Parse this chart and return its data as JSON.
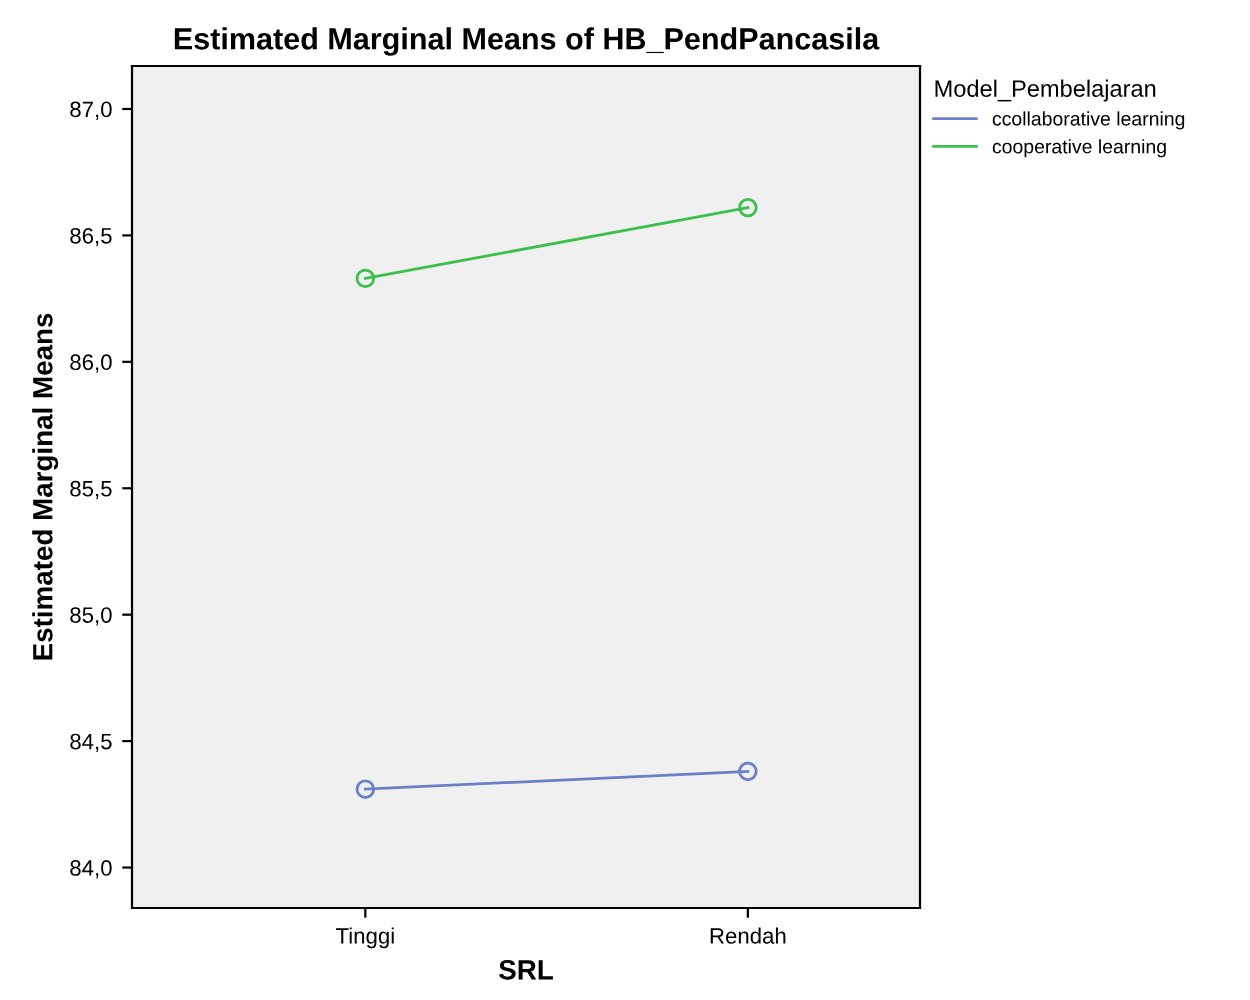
{
  "chart_data": {
    "type": "line",
    "title": "Estimated Marginal Means of HB_PendPancasila",
    "xlabel": "SRL",
    "ylabel": "Estimated Marginal Means",
    "legend_title": "Model_Pembelajaran",
    "categories": [
      "Tinggi",
      "Rendah"
    ],
    "series": [
      {
        "name": "ccollaborative learning",
        "color": "#6b7fc9",
        "values": [
          84.31,
          84.38
        ]
      },
      {
        "name": "cooperative learning",
        "color": "#3cbf4c",
        "values": [
          86.33,
          86.61
        ]
      }
    ],
    "ylim": [
      83.84,
      87.17
    ],
    "yticks": [
      {
        "value": 84.0,
        "label": "84,0"
      },
      {
        "value": 84.5,
        "label": "84,5"
      },
      {
        "value": 85.0,
        "label": "85,0"
      },
      {
        "value": 85.5,
        "label": "85,5"
      },
      {
        "value": 86.0,
        "label": "86,0"
      },
      {
        "value": 86.5,
        "label": "86,5"
      },
      {
        "value": 87.0,
        "label": "87,0"
      }
    ],
    "grid": false,
    "legend": "top right",
    "marker": "circle",
    "line_style": "solid"
  }
}
